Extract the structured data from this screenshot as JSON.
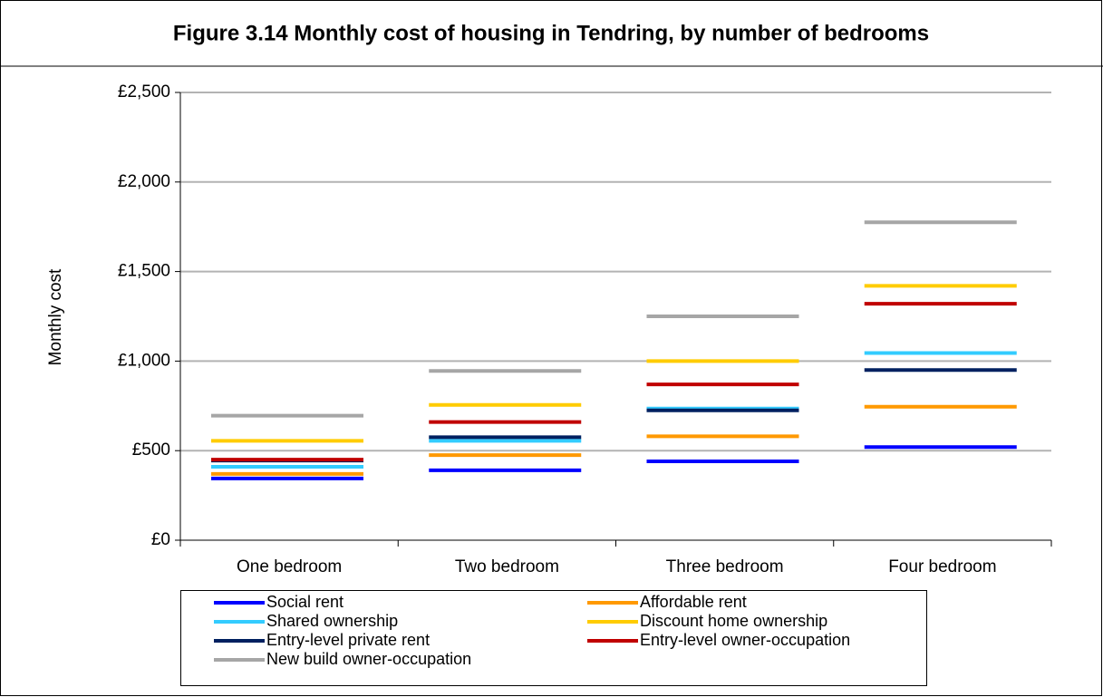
{
  "chart_data": {
    "type": "level-line",
    "title": "Figure 3.14 Monthly cost of housing in Tendring, by number of bedrooms",
    "y_label": "Monthly cost",
    "categories": [
      "One bedroom",
      "Two bedroom",
      "Three bedroom",
      "Four bedroom"
    ],
    "series": [
      {
        "name": "Social rent",
        "color": "#0000ff",
        "values": [
          345,
          390,
          440,
          520
        ]
      },
      {
        "name": "Affordable rent",
        "color": "#ff9900",
        "values": [
          370,
          475,
          580,
          745
        ]
      },
      {
        "name": "Shared ownership",
        "color": "#33ccff",
        "values": [
          410,
          555,
          735,
          1045
        ]
      },
      {
        "name": "Discount home ownership",
        "color": "#ffcc00",
        "values": [
          555,
          755,
          1000,
          1420
        ]
      },
      {
        "name": "Entry-level private rent",
        "color": "#002060",
        "values": [
          445,
          575,
          725,
          950
        ]
      },
      {
        "name": "Entry-level owner-occupation",
        "color": "#c00000",
        "values": [
          450,
          660,
          870,
          1320
        ]
      },
      {
        "name": "New build owner-occupation",
        "color": "#a6a6a6",
        "values": [
          695,
          945,
          1250,
          1775
        ]
      }
    ],
    "ylim": [
      0,
      2500
    ],
    "yticks": [
      {
        "value": 0,
        "label": "£0"
      },
      {
        "value": 500,
        "label": "£500"
      },
      {
        "value": 1000,
        "label": "£1,000"
      },
      {
        "value": 1500,
        "label": "£1,500"
      },
      {
        "value": 2000,
        "label": "£2,000"
      },
      {
        "value": 2500,
        "label": "£2,500"
      }
    ],
    "grid": true,
    "legend": "bottom"
  }
}
